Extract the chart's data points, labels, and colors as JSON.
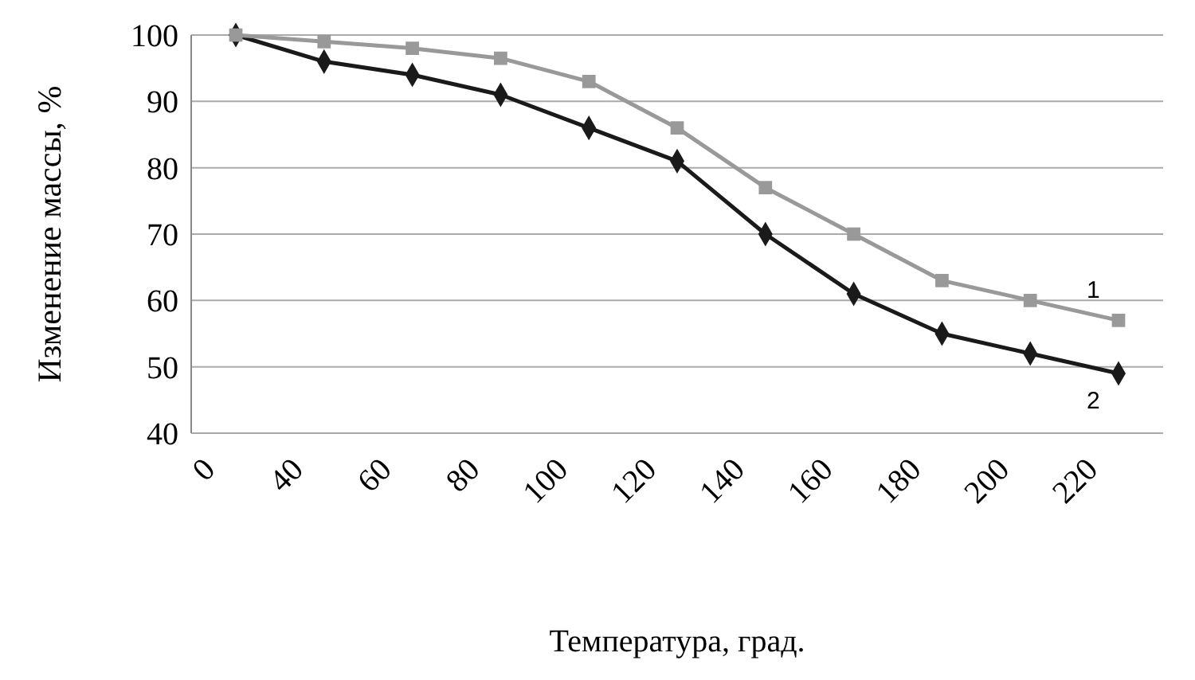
{
  "chart_data": {
    "type": "line",
    "xlabel": "Температура, град.",
    "ylabel": "Изменение массы, %",
    "categories": [
      "0",
      "40",
      "60",
      "80",
      "100",
      "120",
      "140",
      "160",
      "180",
      "200",
      "220"
    ],
    "series": [
      {
        "name": "1",
        "color": "#999999",
        "marker": "square",
        "values": [
          100,
          99,
          98,
          96.5,
          93,
          86,
          77,
          70,
          63,
          60,
          57
        ]
      },
      {
        "name": "2",
        "color": "#1a1a1a",
        "marker": "diamond",
        "values": [
          100,
          96,
          94,
          91,
          86,
          81,
          70,
          61,
          55,
          52,
          49
        ]
      }
    ],
    "ylim": [
      40,
      100
    ],
    "yticks": [
      40,
      50,
      60,
      70,
      80,
      90,
      100
    ],
    "grid": "y"
  }
}
